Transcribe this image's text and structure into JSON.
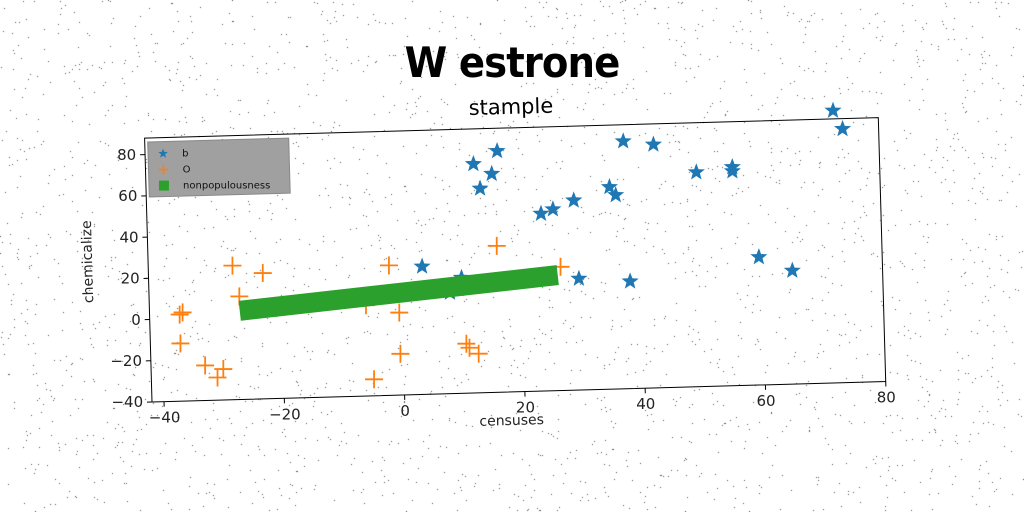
{
  "suptitle": "W estrone",
  "chart_data": {
    "type": "scatter",
    "title": "stample",
    "xlabel": "censuses",
    "ylabel": "chemicalize",
    "xlim": [
      -42,
      80
    ],
    "ylim": [
      -40,
      88
    ],
    "xticks": [
      -40,
      -20,
      0,
      20,
      40,
      60,
      80
    ],
    "yticks": [
      -40,
      -20,
      0,
      20,
      40,
      60,
      80
    ],
    "xtick_labels": [
      "−40",
      "−20",
      "0",
      "20",
      "40",
      "60",
      "80"
    ],
    "ytick_labels": [
      "−40",
      "−20",
      "0",
      "20",
      "40",
      "60",
      "80"
    ],
    "legend_position": "upper-left",
    "grid": false,
    "series": [
      {
        "name": "b",
        "marker": "star",
        "color": "#1f77b4",
        "points": [
          [
            3.5,
            22
          ],
          [
            10,
            16
          ],
          [
            8,
            9
          ],
          [
            12.5,
            71
          ],
          [
            13.5,
            59
          ],
          [
            15.5,
            66
          ],
          [
            16.5,
            77
          ],
          [
            23.5,
            46
          ],
          [
            25.5,
            48
          ],
          [
            29,
            52
          ],
          [
            29.5,
            14
          ],
          [
            35,
            58
          ],
          [
            36,
            54
          ],
          [
            37.5,
            80
          ],
          [
            38,
            12
          ],
          [
            42.5,
            78
          ],
          [
            49.5,
            64
          ],
          [
            55.5,
            66
          ],
          [
            55.5,
            64
          ],
          [
            59.5,
            22
          ],
          [
            65,
            15
          ],
          [
            72.5,
            92
          ],
          [
            74,
            83
          ]
        ]
      },
      {
        "name": "O",
        "marker": "plus",
        "color": "#ff7f0e",
        "points": [
          [
            -37,
            2
          ],
          [
            -36.5,
            3
          ],
          [
            -37,
            -12
          ],
          [
            -33,
            -23
          ],
          [
            -31,
            -29
          ],
          [
            -30,
            -25
          ],
          [
            -28,
            25
          ],
          [
            -27,
            10
          ],
          [
            -23,
            21
          ],
          [
            -6,
            4
          ],
          [
            -5,
            -32
          ],
          [
            -2,
            23
          ],
          [
            -0.5,
            0
          ],
          [
            -0.5,
            -20
          ],
          [
            10.5,
            -16
          ],
          [
            11,
            -18
          ],
          [
            12.5,
            -21
          ],
          [
            16,
            31
          ],
          [
            26.5,
            20
          ]
        ]
      },
      {
        "name": "nonpopulousness",
        "marker": "square",
        "color": "#2ca02c",
        "line": {
          "x0": -27,
          "x1": 26,
          "y0": 3,
          "y1": 16,
          "thickness": 10
        }
      }
    ]
  }
}
